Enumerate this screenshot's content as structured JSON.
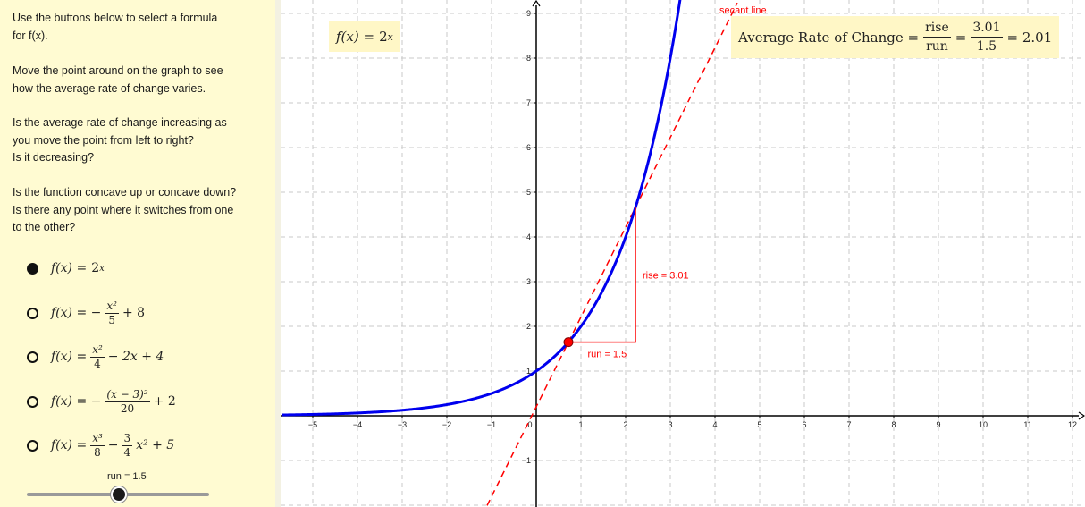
{
  "instructions": {
    "p1": [
      "Use the buttons below to select a formula",
      "for f(x)."
    ],
    "p2": [
      "Move the point around on the graph to see",
      "how the average rate of change varies."
    ],
    "p3": [
      "Is the average rate of change increasing as",
      "you move the point from left to right?",
      "Is it decreasing?"
    ],
    "p4": [
      "Is the function concave up or concave down?",
      "Is there any point where it switches from one",
      "to the other?"
    ]
  },
  "formulas": {
    "selected_index": 0,
    "f1": {
      "lhs": "f(x) =",
      "base": "2",
      "exp": "x"
    },
    "f2": {
      "lhs": "f(x) = −",
      "num": "x²",
      "den": "5",
      "rest": "+ 8"
    },
    "f3": {
      "lhs": "f(x) =",
      "num": "x²",
      "den": "4",
      "rest": "− 2x + 4"
    },
    "f4": {
      "lhs": "f(x) = −",
      "num": "(x − 3)²",
      "den": "20",
      "rest": "+ 2"
    },
    "f5": {
      "lhs": "f(x) =",
      "num1": "x³",
      "den1": "8",
      "mid": "−",
      "num2": "3",
      "den2": "4",
      "rest": "x² + 5"
    }
  },
  "slider": {
    "label": "run = 1.5",
    "value": 1.5,
    "min": 0,
    "max": 3
  },
  "graph": {
    "x_ticks": [
      "−5",
      "−4",
      "−3",
      "−2",
      "−1",
      "0",
      "1",
      "2",
      "3",
      "4",
      "5",
      "6",
      "7",
      "8",
      "9",
      "10",
      "11",
      "12"
    ],
    "y_ticks": [
      "−1",
      "1",
      "2",
      "3",
      "4",
      "5",
      "6",
      "7",
      "8",
      "9"
    ],
    "secant_label": "secant line",
    "rise_label": "rise = 3.01",
    "run_label": "run = 1.5",
    "point_x": 0.72,
    "run": 1.5,
    "colors": {
      "curve": "#0000ee",
      "secant": "#ff0000",
      "triangle": "#ff0000",
      "point": "#ff0000",
      "grid": "#c8c8c8",
      "axis": "#000000"
    }
  },
  "formula_display": {
    "lhs": "f(x) =",
    "base": "2",
    "exp": "x"
  },
  "rate_display": {
    "label": "Average Rate of Change =",
    "rise_word": "rise",
    "run_word": "run",
    "eq": "=",
    "rise_value": "3.01",
    "run_value": "1.5",
    "result": "= 2.01"
  }
}
